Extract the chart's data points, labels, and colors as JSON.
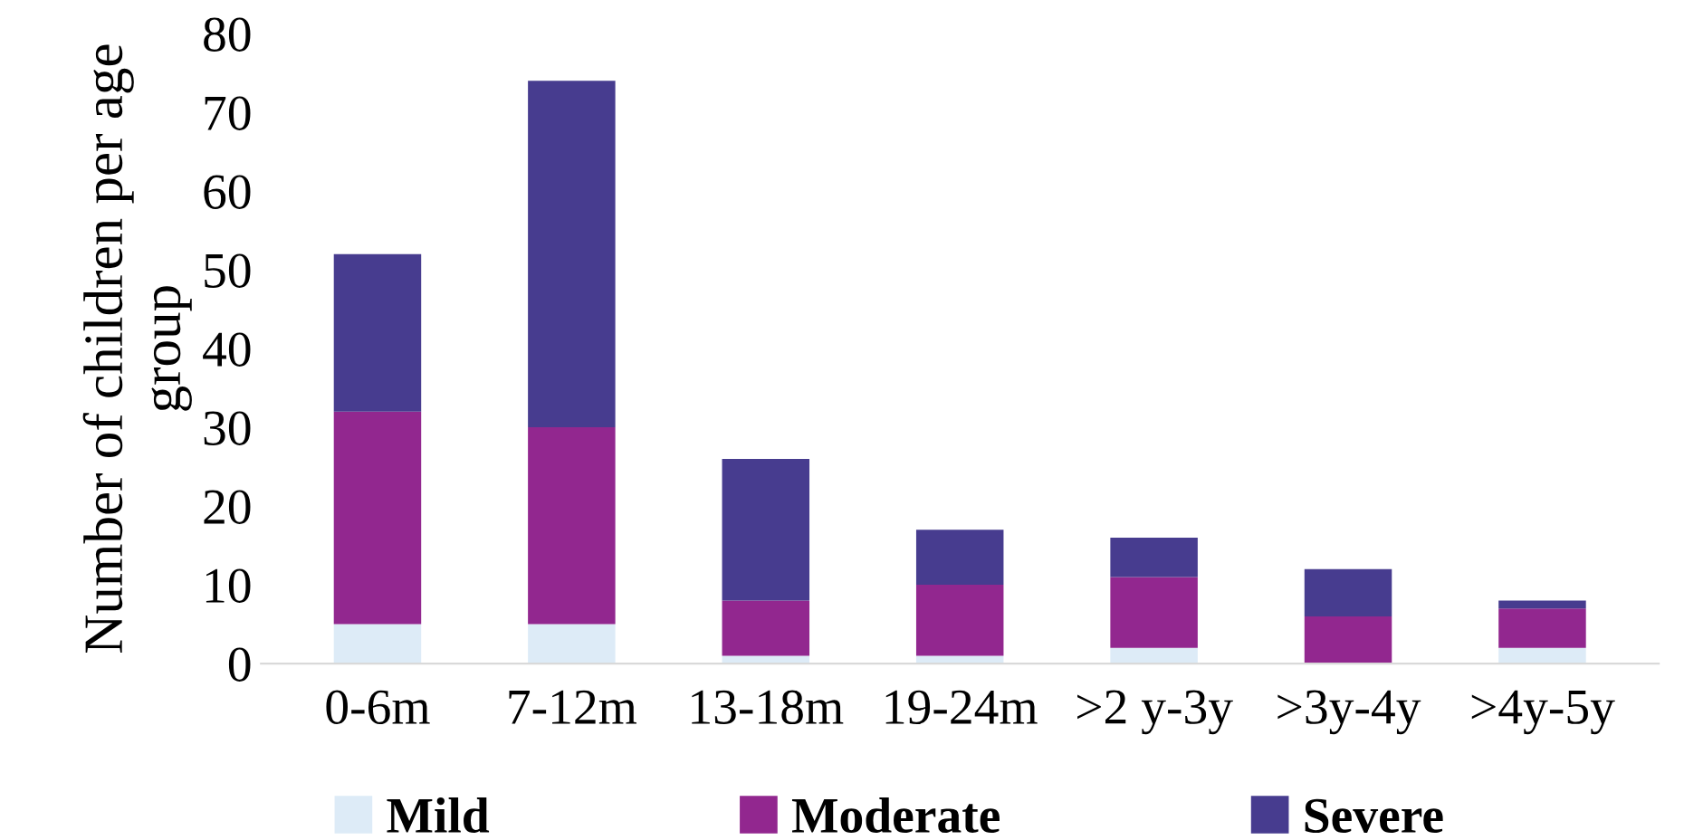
{
  "chart_data": {
    "type": "bar",
    "stacked": true,
    "ylabel": "Number of children per age group",
    "categories": [
      "0-6m",
      "7-12m",
      "13-18m",
      "19-24m",
      ">2 y-3y",
      ">3y-4y",
      ">4y-5y"
    ],
    "series": [
      {
        "name": "Mild",
        "color": "#ddebf7",
        "values": [
          5,
          5,
          1,
          1,
          2,
          0,
          2
        ]
      },
      {
        "name": "Moderate",
        "color": "#92278f",
        "values": [
          27,
          25,
          7,
          9,
          9,
          6,
          5
        ]
      },
      {
        "name": "Severe",
        "color": "#473c8f",
        "values": [
          20,
          44,
          18,
          7,
          5,
          6,
          1
        ]
      }
    ],
    "ylim": [
      0,
      80
    ],
    "yticks": [
      0,
      10,
      20,
      30,
      40,
      50,
      60,
      70,
      80
    ],
    "grid": false,
    "legend": "bottom"
  }
}
